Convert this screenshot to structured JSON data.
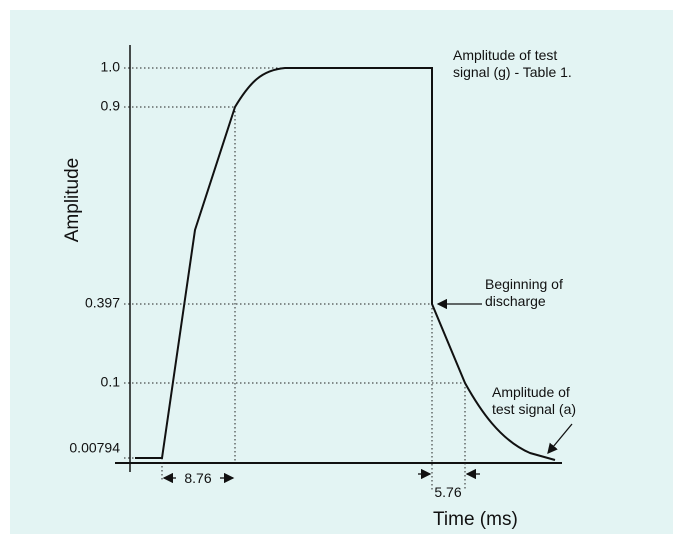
{
  "y_axis": {
    "label": "Amplitude",
    "ticks": [
      "1.0",
      "0.9",
      "0.397",
      "0.1",
      "0.00794"
    ]
  },
  "x_axis": {
    "label": "Time (ms)"
  },
  "annotations": {
    "test_signal_g": [
      "Amplitude of test",
      "signal (g) - Table 1."
    ],
    "discharge": [
      "Beginning of",
      "discharge"
    ],
    "test_signal_a": [
      "Amplitude of",
      "test signal (a)"
    ],
    "rise_time": "8.76",
    "fall_time": "5.76"
  }
}
